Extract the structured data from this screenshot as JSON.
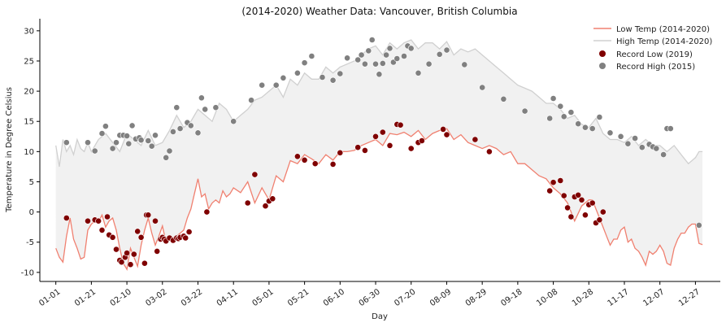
{
  "chart_data": {
    "type": "line",
    "title": "(2014-2020) Weather Data: Vancouver, British Columbia",
    "xlabel": "Day",
    "ylabel": "Temperature in Degree Celsius",
    "ylim": [
      -11.5,
      32
    ],
    "xlim": [
      -9,
      374
    ],
    "x_ticks": [
      {
        "day": 0,
        "label": "01-01"
      },
      {
        "day": 20,
        "label": "01-21"
      },
      {
        "day": 40,
        "label": "02-10"
      },
      {
        "day": 60,
        "label": "03-02"
      },
      {
        "day": 80,
        "label": "03-22"
      },
      {
        "day": 100,
        "label": "04-11"
      },
      {
        "day": 120,
        "label": "05-01"
      },
      {
        "day": 140,
        "label": "05-21"
      },
      {
        "day": 160,
        "label": "06-10"
      },
      {
        "day": 180,
        "label": "06-30"
      },
      {
        "day": 200,
        "label": "07-20"
      },
      {
        "day": 220,
        "label": "08-09"
      },
      {
        "day": 240,
        "label": "08-29"
      },
      {
        "day": 260,
        "label": "09-18"
      },
      {
        "day": 280,
        "label": "10-08"
      },
      {
        "day": 300,
        "label": "10-28"
      },
      {
        "day": 320,
        "label": "11-17"
      },
      {
        "day": 340,
        "label": "12-07"
      },
      {
        "day": 360,
        "label": "12-27"
      }
    ],
    "y_ticks": [
      -10,
      -5,
      0,
      5,
      10,
      15,
      20,
      25,
      30
    ],
    "grid": false,
    "legend_position": "top-right",
    "series": [
      {
        "name": "Low Temp (2014-2020)",
        "kind": "line",
        "color": "#f08070",
        "x": [
          0,
          2,
          4,
          6,
          8,
          10,
          12,
          14,
          16,
          18,
          20,
          22,
          24,
          26,
          28,
          30,
          32,
          34,
          36,
          38,
          40,
          42,
          44,
          46,
          48,
          50,
          52,
          54,
          56,
          58,
          60,
          62,
          64,
          66,
          68,
          70,
          72,
          74,
          76,
          78,
          80,
          82,
          84,
          86,
          88,
          90,
          92,
          94,
          96,
          98,
          100,
          104,
          108,
          112,
          116,
          120,
          124,
          128,
          132,
          136,
          140,
          144,
          148,
          152,
          156,
          160,
          164,
          168,
          172,
          176,
          180,
          184,
          188,
          192,
          196,
          200,
          204,
          208,
          212,
          216,
          220,
          224,
          228,
          232,
          236,
          240,
          244,
          248,
          252,
          256,
          260,
          264,
          268,
          272,
          276,
          280,
          284,
          288,
          292,
          296,
          300,
          302,
          304,
          306,
          308,
          310,
          312,
          314,
          316,
          318,
          320,
          322,
          324,
          326,
          328,
          330,
          332,
          334,
          336,
          338,
          340,
          342,
          344,
          346,
          348,
          350,
          352,
          354,
          356,
          358,
          360,
          362,
          364
        ],
        "values": [
          -6,
          -7.5,
          -8.3,
          -4,
          -1,
          -4.5,
          -6,
          -7.8,
          -7.5,
          -3,
          -2,
          -1.5,
          -1.6,
          -0.5,
          -2.5,
          -1.5,
          -1,
          -3,
          -6,
          -8.5,
          -9.5,
          -6,
          -7.5,
          -9,
          -5.5,
          -3,
          -1,
          -3.5,
          -5.5,
          -4,
          -2.3,
          -5,
          -4.5,
          -4.2,
          -4,
          -3.5,
          -3,
          -1,
          0.5,
          3,
          5.5,
          2.5,
          3,
          0.5,
          1.5,
          2,
          1.5,
          3.5,
          2.5,
          3,
          4,
          3.2,
          5,
          1.5,
          4,
          2,
          6,
          5,
          8.5,
          8,
          9.5,
          8.8,
          8,
          9.5,
          8.6,
          10,
          10,
          10.2,
          11,
          11.5,
          12,
          11,
          13,
          12.8,
          13.2,
          12.5,
          13.5,
          12,
          13,
          13.5,
          13.8,
          12,
          12.8,
          11.5,
          11,
          10.5,
          11,
          10.5,
          9.5,
          10,
          8,
          8,
          7,
          6,
          5.5,
          4,
          3,
          1.5,
          -1.5,
          1,
          2,
          2,
          0.5,
          -1,
          -2.5,
          -4,
          -5.5,
          -4.5,
          -4.5,
          -3,
          -2.5,
          -5,
          -4.5,
          -6,
          -6.5,
          -7.5,
          -8.8,
          -6.5,
          -7,
          -6.5,
          -5.5,
          -6.5,
          -8.5,
          -8.8,
          -6,
          -4.5,
          -3.5,
          -3.5,
          -2.5,
          -2,
          -2,
          -5.2,
          -5.4
        ]
      },
      {
        "name": "High Temp (2014-2020)",
        "kind": "line",
        "color": "#d0d0d0",
        "x": [
          0,
          2,
          4,
          6,
          8,
          10,
          12,
          14,
          16,
          18,
          20,
          24,
          28,
          32,
          36,
          40,
          44,
          48,
          52,
          56,
          60,
          64,
          68,
          72,
          76,
          80,
          84,
          88,
          92,
          96,
          100,
          104,
          108,
          112,
          116,
          120,
          124,
          128,
          132,
          136,
          140,
          144,
          148,
          152,
          156,
          160,
          164,
          168,
          172,
          176,
          180,
          184,
          188,
          192,
          196,
          200,
          204,
          208,
          212,
          216,
          220,
          224,
          228,
          232,
          236,
          240,
          244,
          248,
          252,
          256,
          260,
          264,
          268,
          272,
          276,
          280,
          284,
          288,
          292,
          296,
          300,
          304,
          308,
          312,
          316,
          320,
          324,
          328,
          332,
          336,
          340,
          344,
          348,
          352,
          356,
          360,
          362,
          364
        ],
        "values": [
          11,
          7.5,
          12,
          10,
          11,
          9.5,
          12,
          10.5,
          10,
          11.5,
          10,
          12,
          13,
          11.5,
          10,
          13,
          12,
          11,
          13.5,
          11,
          11.5,
          13.5,
          16,
          14,
          15,
          17,
          16,
          15,
          18,
          17,
          15,
          16,
          17,
          18.5,
          19,
          20,
          21,
          19,
          22,
          21,
          23,
          22,
          22,
          24,
          23,
          24,
          24.5,
          25,
          26,
          27,
          27.5,
          26,
          28,
          27,
          28,
          28.5,
          27,
          28,
          28,
          27,
          28.2,
          26,
          27,
          26.5,
          27,
          26,
          25,
          24,
          23,
          22,
          21,
          20.5,
          20,
          19,
          18,
          18,
          17,
          15.5,
          16,
          14.5,
          14,
          15.5,
          13,
          12,
          12,
          11.5,
          12.5,
          11,
          12,
          11,
          11,
          10,
          11,
          9.5,
          8,
          9,
          10,
          10
        ]
      }
    ],
    "scatter": [
      {
        "name": "Record Low (2019)",
        "color": "#7f0000",
        "x": [
          6,
          18,
          22,
          24,
          26,
          29,
          30,
          32,
          34,
          36,
          37,
          39,
          40,
          42,
          44,
          46,
          48,
          50,
          51,
          52,
          56,
          57,
          59,
          60,
          61,
          62,
          64,
          66,
          68,
          69,
          70,
          72,
          73,
          75,
          85,
          108,
          112,
          118,
          120,
          122,
          136,
          140,
          146,
          156,
          160,
          170,
          174,
          180,
          184,
          188,
          192,
          194,
          200,
          204,
          206,
          218,
          220,
          236,
          244,
          278,
          280,
          284,
          286,
          288,
          290,
          292,
          294,
          296,
          298,
          300,
          302,
          304,
          306,
          308,
          362
        ],
        "values": [
          -1,
          -1.5,
          -1.3,
          -1.5,
          -3,
          -0.8,
          -3.8,
          -4.2,
          -6.2,
          -8,
          -8.3,
          -7.5,
          -6.8,
          -8.7,
          -7,
          -3.2,
          -4.2,
          -8.5,
          -0.5,
          -0.5,
          -1.5,
          -6.5,
          -4.5,
          -4.2,
          -4.5,
          -4.8,
          -4.3,
          -4.7,
          -4.3,
          -4.4,
          -4.2,
          -4,
          -4.3,
          -3.3,
          0,
          1.5,
          6.2,
          1,
          1.8,
          2.2,
          9.2,
          8.6,
          8,
          7.9,
          9.8,
          10.7,
          10.2,
          12.5,
          13.2,
          11,
          14.5,
          14.4,
          10.5,
          11.5,
          11.8,
          13.7,
          12.8,
          12,
          10,
          3.5,
          4.9,
          5.2,
          2.7,
          0.7,
          -0.8,
          2.5,
          2.8,
          2,
          -0.5,
          1.2,
          1.5,
          -1.8,
          -1.3,
          0,
          -2.2
        ]
      },
      {
        "name": "Record High (2015)",
        "color": "#808080",
        "x": [
          6,
          18,
          22,
          26,
          28,
          32,
          34,
          36,
          38,
          40,
          41,
          43,
          45,
          47,
          48,
          52,
          54,
          56,
          62,
          64,
          66,
          68,
          70,
          74,
          76,
          80,
          82,
          84,
          90,
          100,
          110,
          116,
          124,
          128,
          136,
          140,
          144,
          150,
          156,
          160,
          164,
          170,
          172,
          174,
          176,
          178,
          180,
          182,
          184,
          186,
          188,
          190,
          192,
          196,
          198,
          200,
          204,
          210,
          216,
          220,
          230,
          240,
          252,
          264,
          278,
          280,
          284,
          286,
          290,
          294,
          298,
          302,
          306,
          312,
          318,
          322,
          326,
          330,
          334,
          336,
          338,
          342,
          344,
          346,
          362
        ],
        "values": [
          11.5,
          11.5,
          10.1,
          13,
          14.2,
          10.5,
          11.5,
          12.7,
          12.7,
          12.6,
          11.3,
          14.3,
          12.1,
          12.3,
          11.9,
          11.8,
          10.9,
          12.7,
          9,
          10.1,
          13.3,
          17.3,
          13.8,
          14.8,
          14.3,
          13.1,
          18.9,
          17,
          17.3,
          15,
          18.5,
          21,
          21,
          22.2,
          23,
          24.7,
          25.8,
          22.3,
          21.8,
          22.9,
          25.5,
          25.2,
          26,
          24.5,
          26.7,
          28.5,
          24.5,
          22.8,
          24.6,
          26,
          27.1,
          24.8,
          25.4,
          25.8,
          27.5,
          27.1,
          23,
          24.5,
          26.1,
          26.8,
          24.4,
          20.6,
          18.7,
          16.7,
          15.5,
          18.8,
          17.5,
          15.8,
          16.5,
          14.6,
          14,
          13.8,
          15.7,
          13.1,
          12.5,
          11.3,
          12.2,
          10.7,
          11.2,
          10.8,
          10.5,
          9.5,
          13.8,
          13.8,
          -2.2
        ]
      }
    ]
  }
}
